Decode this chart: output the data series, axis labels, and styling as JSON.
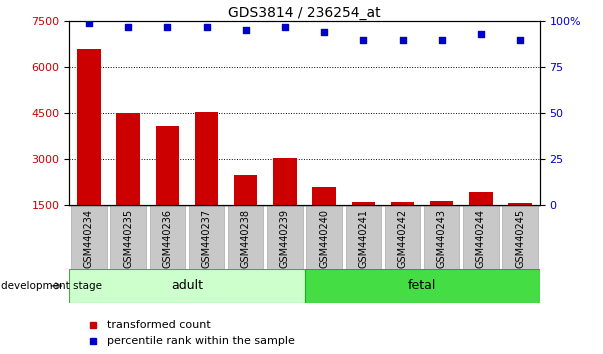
{
  "title": "GDS3814 / 236254_at",
  "samples": [
    "GSM440234",
    "GSM440235",
    "GSM440236",
    "GSM440237",
    "GSM440238",
    "GSM440239",
    "GSM440240",
    "GSM440241",
    "GSM440242",
    "GSM440243",
    "GSM440244",
    "GSM440245"
  ],
  "transformed_count": [
    6600,
    4500,
    4100,
    4550,
    2500,
    3050,
    2100,
    1600,
    1600,
    1650,
    1950,
    1580
  ],
  "percentile_rank": [
    99,
    97,
    97,
    97,
    95,
    97,
    94,
    90,
    90,
    90,
    93,
    90
  ],
  "ylim_left": [
    1500,
    7500
  ],
  "ylim_right": [
    0,
    100
  ],
  "yticks_left": [
    1500,
    3000,
    4500,
    6000,
    7500
  ],
  "yticks_right": [
    0,
    25,
    50,
    75,
    100
  ],
  "bar_color": "#cc0000",
  "dot_color": "#0000cc",
  "bg_color": "#c8c8c8",
  "adult_color": "#ccffcc",
  "fetal_color": "#44dd44",
  "grid_color": "#000000",
  "legend_items": [
    "transformed count",
    "percentile rank within the sample"
  ],
  "legend_colors": [
    "#cc0000",
    "#0000cc"
  ],
  "dev_stage_label": "development stage",
  "adult_range": [
    0,
    5
  ],
  "fetal_range": [
    6,
    11
  ]
}
